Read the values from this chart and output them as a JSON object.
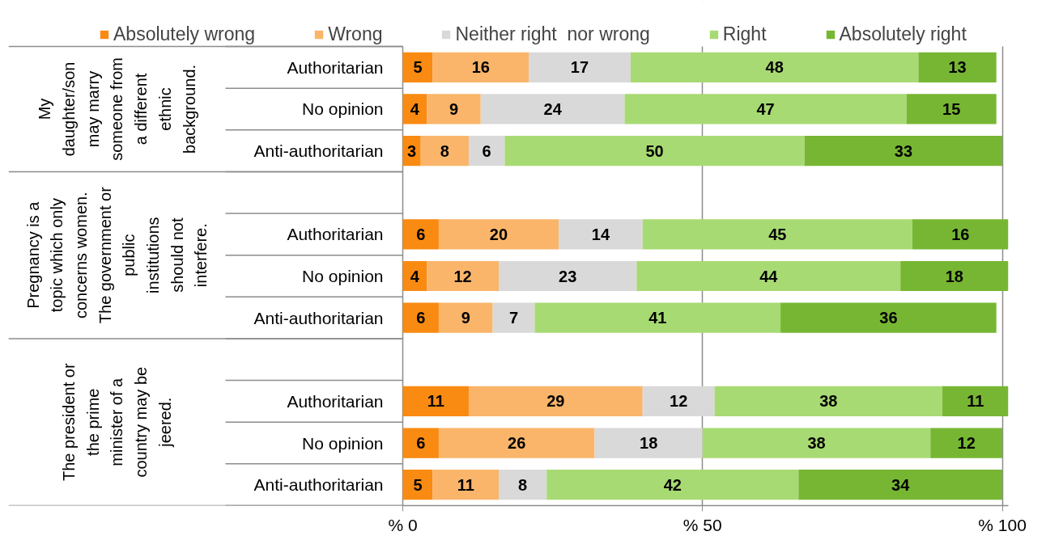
{
  "chart_data": {
    "type": "bar",
    "orientation": "horizontal",
    "stacked": true,
    "categories": [
      "Authoritarian",
      "No opinion",
      "Anti-authoritarian",
      null,
      "Authoritarian",
      "No opinion",
      "Anti-authoritarian",
      null,
      "Authoritarian",
      "No opinion",
      "Anti-authoritarian"
    ],
    "series": [
      {
        "name": "Absolutely wrong",
        "color": "#f98a12",
        "values": [
          5,
          4,
          3,
          null,
          6,
          4,
          6,
          null,
          11,
          6,
          5
        ]
      },
      {
        "name": "Wrong",
        "color": "#fab56a",
        "values": [
          16,
          9,
          8,
          null,
          20,
          12,
          9,
          null,
          29,
          26,
          11
        ]
      },
      {
        "name": "Neither right  nor wrong",
        "color": "#d9d9d9",
        "values": [
          17,
          24,
          6,
          null,
          14,
          23,
          7,
          null,
          12,
          18,
          8
        ]
      },
      {
        "name": "Right",
        "color": "#a8da73",
        "values": [
          48,
          47,
          50,
          null,
          45,
          44,
          41,
          null,
          38,
          38,
          42
        ]
      },
      {
        "name": "Absolutely right",
        "color": "#77b633",
        "values": [
          13,
          15,
          33,
          null,
          16,
          18,
          36,
          null,
          11,
          12,
          34
        ]
      }
    ],
    "xlim": [
      0,
      101
    ],
    "xticks": [
      {
        "value": 0,
        "label": "% 0"
      },
      {
        "value": 50,
        "label": "% 50"
      },
      {
        "value": 100,
        "label": "% 100"
      }
    ],
    "grid": "x",
    "legend": "top",
    "data_labels": true,
    "annotations": [
      "My daughter/son may marry someone from a different ethnic background.",
      "Pregnancy is a topic which only concerns women. The government or public institutions should not interfere.",
      "The president or the prime minister of a country may be jeered."
    ]
  }
}
